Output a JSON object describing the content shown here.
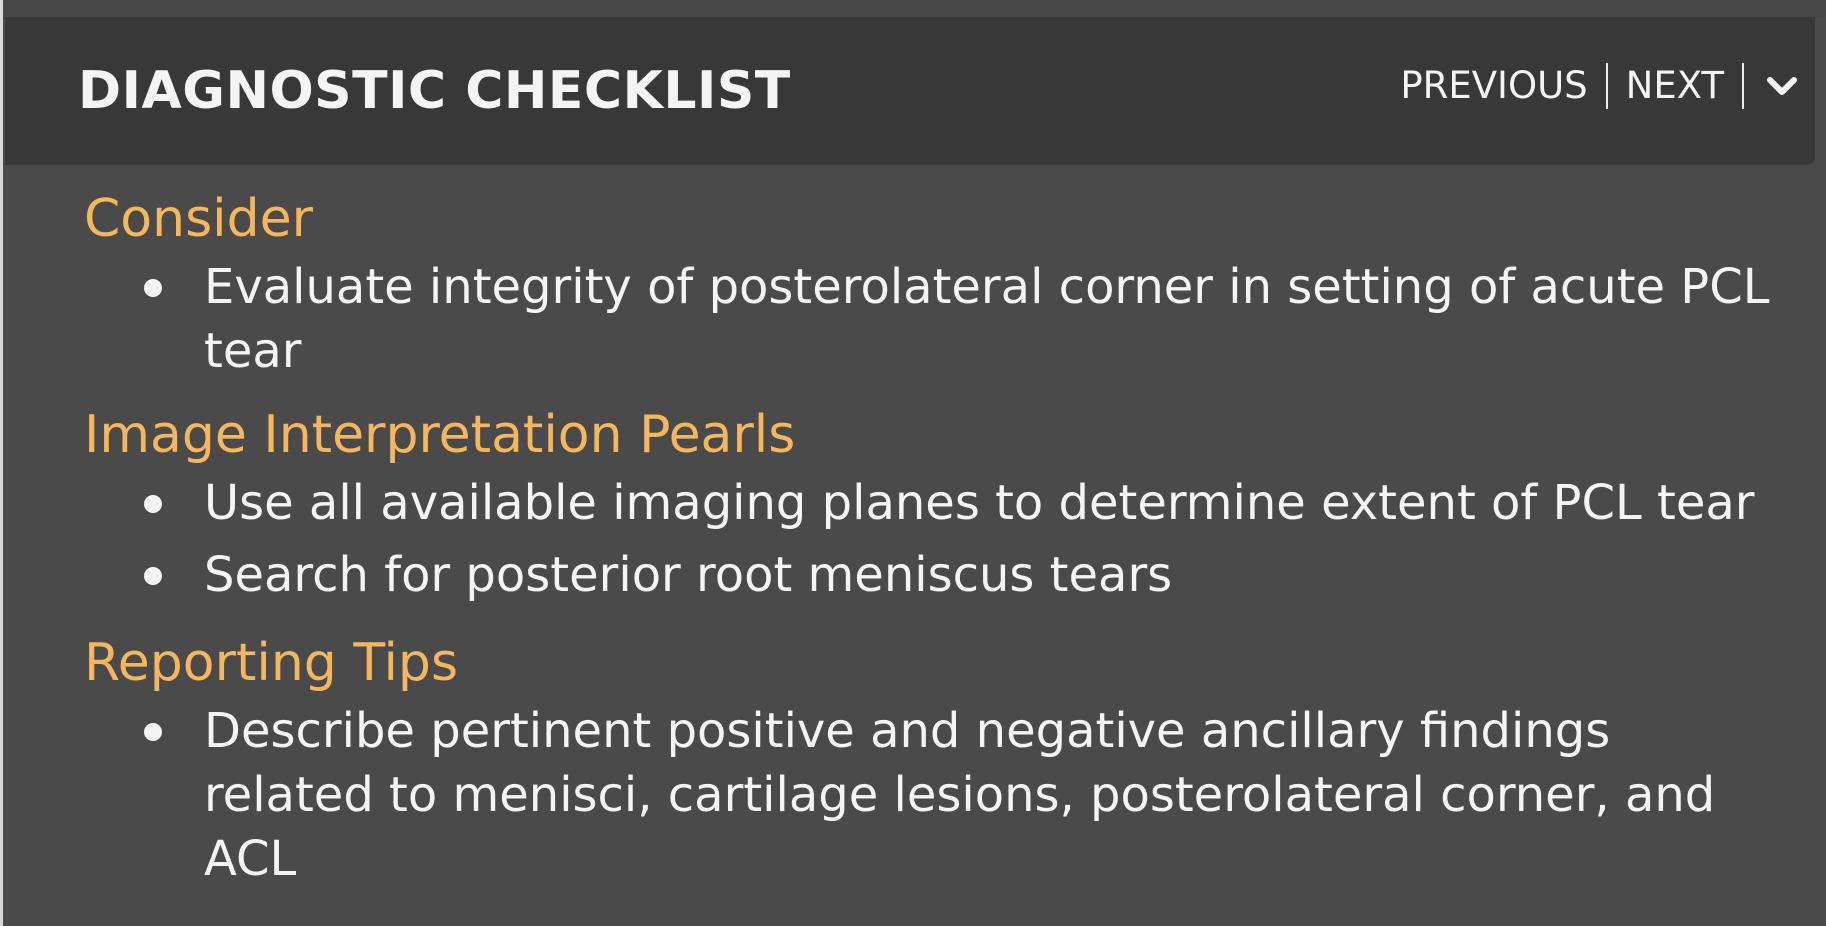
{
  "header": {
    "title": "DIAGNOSTIC CHECKLIST",
    "previous_label": "PREVIOUS",
    "next_label": "NEXT",
    "collapse_icon": "chevron-down-icon"
  },
  "colors": {
    "background": "#4a4a4a",
    "header_bar": "#383838",
    "section_heading": "#f5b75e",
    "text": "#f4f4f4"
  },
  "sections": [
    {
      "heading": "Consider",
      "items": [
        "Evaluate integrity of posterolateral corner in setting of acute PCL tear"
      ]
    },
    {
      "heading": "Image Interpretation Pearls",
      "items": [
        "Use all available imaging planes to determine extent of PCL tear",
        "Search for posterior root meniscus tears"
      ]
    },
    {
      "heading": "Reporting Tips",
      "items": [
        "Describe pertinent positive and negative ancillary findings related to menisci, cartilage lesions, posterolateral corner, and ACL"
      ]
    }
  ]
}
